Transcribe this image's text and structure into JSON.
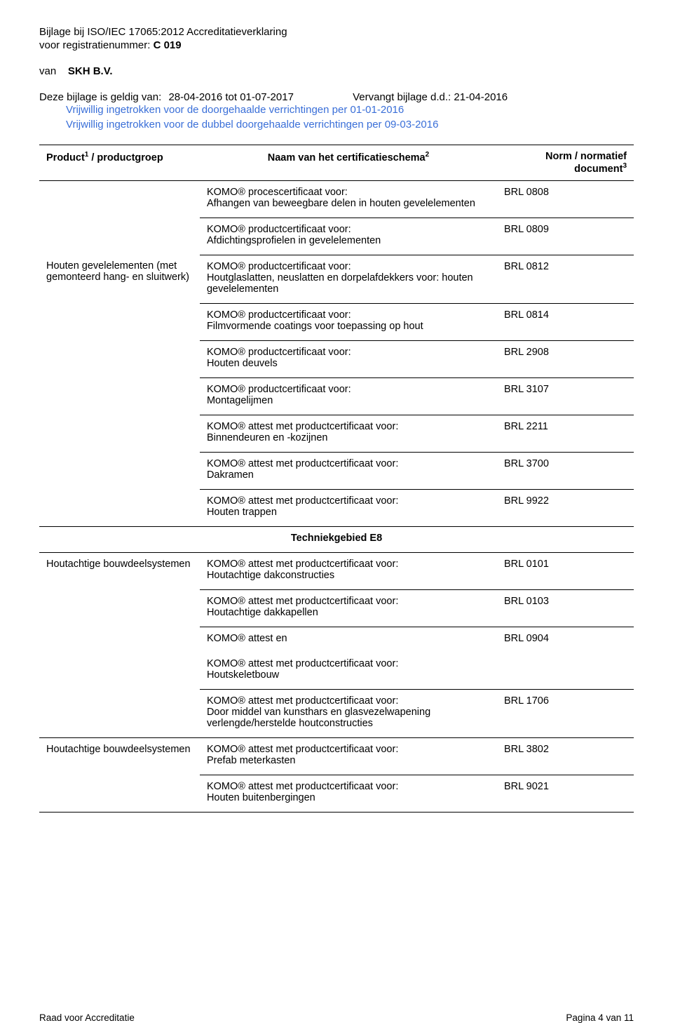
{
  "header": {
    "line1": "Bijlage bij ISO/IEC 17065:2012 Accreditatieverklaring",
    "line2_prefix": "voor registratienummer:",
    "reg_number": "C 019",
    "van_label": "van",
    "org_name": "SKH B.V.",
    "valid_prefix": "Deze bijlage is geldig van:",
    "valid_dates": "28-04-2016 tot 01-07-2017",
    "vervangt_prefix": "Vervangt bijlage d.d.:",
    "vervangt_date": "21-04-2016",
    "notice1": "Vrijwillig ingetrokken voor de doorgehaalde verrichtingen per 01-01-2016",
    "notice2": "Vrijwillig ingetrokken voor de dubbel doorgehaalde verrichtingen per 09-03-2016"
  },
  "columns": {
    "c1_a": "Product",
    "c1_b": " / productgroep",
    "c2_a": "Naam van het certificatieschema",
    "c3_a": "Norm / normatief",
    "c3_b": "document"
  },
  "rows": {
    "r1_left": "",
    "r1_mid": "KOMO® procescertificaat voor:\nAfhangen van beweegbare delen in houten gevelelementen",
    "r1_norm": "BRL 0808",
    "r2_left": "",
    "r2_mid": "KOMO® productcertificaat voor:\nAfdichtingsprofielen in gevelelementen",
    "r2_norm": "BRL 0809",
    "r3_left": "Houten gevelelementen (met gemonteerd hang- en sluitwerk)",
    "r3_mid": "KOMO® productcertificaat voor:\nHoutglaslatten, neuslatten en dorpelafdekkers voor: houten gevelelementen",
    "r3_norm": "BRL 0812",
    "r4_mid": "KOMO® productcertificaat voor:\nFilmvormende coatings voor toepassing op hout",
    "r4_norm": "BRL 0814",
    "r5_mid": "KOMO® productcertificaat voor:\nHouten deuvels",
    "r5_norm": "BRL 2908",
    "r6_mid": "KOMO® productcertificaat voor:\nMontagelijmen",
    "r6_norm": "BRL 3107",
    "r7_mid": "KOMO® attest met productcertificaat voor:\nBinnendeuren en -kozijnen",
    "r7_norm": "BRL 2211",
    "r8_mid": "KOMO® attest met productcertificaat voor:\nDakramen",
    "r8_norm": "BRL 3700",
    "r9_mid": "KOMO® attest met productcertificaat voor:\nHouten trappen",
    "r9_norm": "BRL 9922",
    "section_e8": "Techniekgebied E8",
    "r10_left": "Houtachtige bouwdeelsystemen",
    "r10_mid": "KOMO® attest met productcertificaat voor:\nHoutachtige dakconstructies",
    "r10_norm": "BRL 0101",
    "r11_mid": "KOMO® attest met productcertificaat voor:\nHoutachtige dakkapellen",
    "r11_norm": "BRL 0103",
    "r12_mid": "KOMO® attest en",
    "r12_norm": "BRL 0904",
    "r12b_mid": "KOMO® attest met productcertificaat voor:\nHoutskeletbouw",
    "r13_mid": "KOMO® attest met productcertificaat voor:\nDoor middel van kunsthars en glasvezelwapening verlengde/herstelde houtconstructies",
    "r13_norm": "BRL 1706",
    "r14_left": "Houtachtige bouwdeelsystemen",
    "r14_mid": "KOMO® attest met productcertificaat voor:\nPrefab meterkasten",
    "r14_norm": "BRL 3802",
    "r15_mid": "KOMO® attest met productcertificaat voor:\nHouten buitenbergingen",
    "r15_norm": "BRL 9021"
  },
  "footer": {
    "left": "Raad voor Accreditatie",
    "right": "Pagina 4 van 11"
  }
}
